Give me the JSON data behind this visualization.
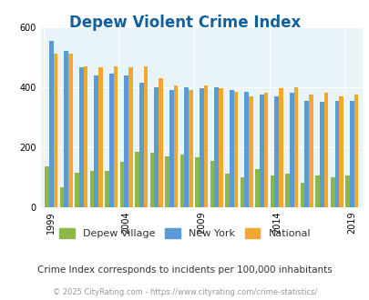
{
  "title": "Depew Violent Crime Index",
  "title_color": "#1060a0",
  "subtitle": "Crime Index corresponds to incidents per 100,000 inhabitants",
  "footer": "© 2025 CityRating.com - https://www.cityrating.com/crime-statistics/",
  "years": [
    1999,
    2000,
    2001,
    2002,
    2003,
    2004,
    2005,
    2006,
    2007,
    2008,
    2009,
    2010,
    2011,
    2012,
    2013,
    2014,
    2015,
    2016,
    2017,
    2018,
    2019,
    2020
  ],
  "depew": [
    135,
    65,
    115,
    120,
    120,
    150,
    185,
    180,
    170,
    175,
    165,
    155,
    110,
    100,
    125,
    105,
    110,
    80,
    105,
    100,
    105,
    0
  ],
  "new_york": [
    555,
    520,
    465,
    440,
    445,
    440,
    415,
    400,
    390,
    400,
    395,
    400,
    390,
    385,
    375,
    370,
    380,
    355,
    350,
    355,
    355,
    0
  ],
  "national": [
    510,
    510,
    470,
    465,
    470,
    465,
    470,
    430,
    405,
    390,
    405,
    395,
    385,
    370,
    380,
    395,
    400,
    375,
    380,
    370,
    375,
    0
  ],
  "depew_color": "#8db845",
  "ny_color": "#5b9bd5",
  "national_color": "#f0a830",
  "bg_color": "#e8f4f8",
  "ylim": [
    0,
    600
  ],
  "yticks": [
    0,
    200,
    400,
    600
  ],
  "bar_width": 0.28,
  "legend_labels": [
    "Depew Village",
    "New York",
    "National"
  ]
}
